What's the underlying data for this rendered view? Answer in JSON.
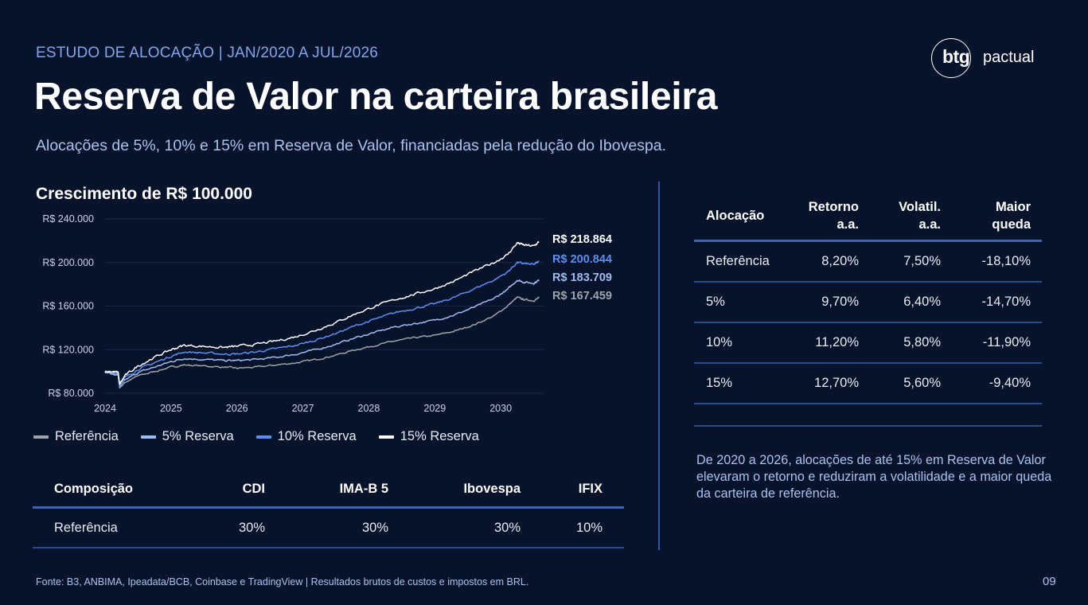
{
  "header": {
    "eyebrow": "ESTUDO DE ALOCAÇÃO | JAN/2020 A JUL/2026",
    "title": "Reserva de Valor na carteira brasileira",
    "subtitle": "Alocações de 5%, 10% e 15% em Reserva de Valor, financiadas pela redução do Ibovespa."
  },
  "logo": {
    "mark": "btg",
    "word": "pactual"
  },
  "chart_title": "Crescimento de R$ 100.000",
  "chart_data": {
    "type": "line",
    "title": "Crescimento de R$ 100.000",
    "xlabel": "",
    "ylabel": "",
    "xlim": [
      2024.0,
      2030.65
    ],
    "ylim": [
      80000,
      240000
    ],
    "x_ticks": [
      "2024",
      "2025",
      "2026",
      "2027",
      "2028",
      "2029",
      "2030"
    ],
    "y_ticks": [
      "R$ 80.000",
      "R$ 120.000",
      "R$ 160.000",
      "R$ 200.000",
      "R$ 240.000"
    ],
    "grid": true,
    "legend_position": "bottom",
    "x": [
      2024.0,
      2024.1,
      2024.2,
      2024.22,
      2024.3,
      2024.5,
      2024.75,
      2025.0,
      2025.2,
      2025.5,
      2025.8,
      2026.0,
      2026.3,
      2026.6,
      2026.9,
      2027.2,
      2027.5,
      2027.8,
      2028.1,
      2028.4,
      2028.7,
      2029.0,
      2029.3,
      2029.6,
      2029.9,
      2030.1,
      2030.25,
      2030.35,
      2030.5,
      2030.58
    ],
    "series": [
      {
        "name": "Referência",
        "color": "#9ea3ab",
        "end_label": "R$ 167.459",
        "values": [
          100000,
          98000,
          96000,
          85000,
          90000,
          96000,
          100000,
          104000,
          106000,
          105000,
          104000,
          103000,
          104000,
          106000,
          108000,
          111000,
          115000,
          120000,
          124000,
          128000,
          131000,
          133000,
          137000,
          143000,
          151000,
          160000,
          168000,
          166000,
          165000,
          167459
        ]
      },
      {
        "name": "5% Reserva",
        "color": "#9dbcf5",
        "end_label": "R$ 183.709",
        "values": [
          100000,
          98500,
          97000,
          86000,
          92000,
          99000,
          104000,
          109000,
          112000,
          111000,
          110000,
          110000,
          111000,
          113000,
          116000,
          120000,
          125000,
          131000,
          136000,
          141000,
          144000,
          147000,
          152000,
          159000,
          167000,
          175000,
          184000,
          182000,
          181000,
          183709
        ]
      },
      {
        "name": "10% Reserva",
        "color": "#5b8ef2",
        "end_label": "R$ 200.844",
        "values": [
          100000,
          99000,
          98000,
          87000,
          94000,
          102000,
          108000,
          114000,
          118000,
          117000,
          116000,
          116000,
          118000,
          121000,
          124000,
          129000,
          135000,
          142000,
          148000,
          154000,
          158000,
          162000,
          168000,
          176000,
          184000,
          191000,
          200000,
          199000,
          198000,
          200844
        ]
      },
      {
        "name": "15% Reserva",
        "color": "#ffffff",
        "end_label": "R$ 218.864",
        "values": [
          100000,
          100000,
          99000,
          88000,
          96000,
          105000,
          113000,
          120000,
          124000,
          123000,
          122000,
          123000,
          125000,
          128000,
          132000,
          138000,
          145000,
          153000,
          160000,
          166000,
          171000,
          176000,
          183000,
          192000,
          200000,
          207000,
          218000,
          216000,
          215000,
          218864
        ]
      }
    ]
  },
  "composition_table": {
    "headers": [
      "Composição",
      "CDI",
      "IMA-B 5",
      "Ibovespa",
      "IFIX"
    ],
    "rows": [
      [
        "Referência",
        "30%",
        "30%",
        "30%",
        "10%"
      ]
    ]
  },
  "returns_table": {
    "headers": [
      {
        "line1": "Alocação",
        "line2": ""
      },
      {
        "line1": "Retorno",
        "line2": "a.a."
      },
      {
        "line1": "Volatil.",
        "line2": "a.a."
      },
      {
        "line1": "Maior",
        "line2": "queda"
      }
    ],
    "rows": [
      [
        "Referência",
        "8,20%",
        "7,50%",
        "-18,10%"
      ],
      [
        "5%",
        "9,70%",
        "6,40%",
        "-14,70%"
      ],
      [
        "10%",
        "11,20%",
        "5,80%",
        "-11,90%"
      ],
      [
        "15%",
        "12,70%",
        "5,60%",
        "-9,40%"
      ]
    ]
  },
  "note": "De 2020 a 2026, alocações de até 15% em Reserva de Valor elevaram o retorno e reduziram a volatilidade e a maior queda da carteira de referência.",
  "footer": "Fonte: B3, ANBIMA, Ipeadata/BCB, Coinbase e TradingView | Resultados brutos de custos e impostos em BRL.",
  "page_number": "09",
  "colors": {
    "background": "#07132b",
    "accent": "#7ea6ee",
    "rule": "#3b63bd"
  }
}
